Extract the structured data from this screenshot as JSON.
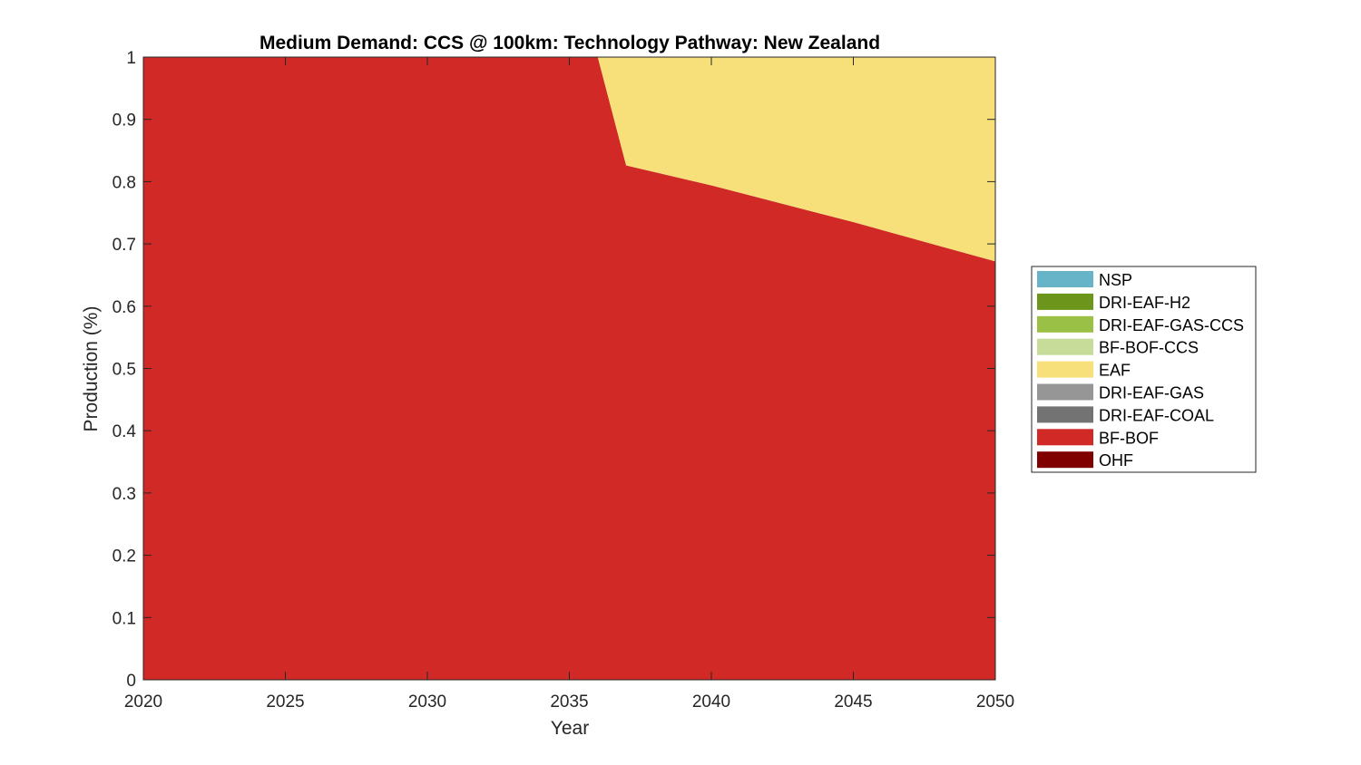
{
  "chart_data": {
    "type": "area",
    "title": "Medium Demand: CCS @ 100km: Technology Pathway: New Zealand",
    "xlabel": "Year",
    "ylabel": "Production (%)",
    "xlim": [
      2020,
      2050
    ],
    "ylim": [
      0,
      1
    ],
    "xticks": [
      "2020",
      "2025",
      "2030",
      "2035",
      "2040",
      "2045",
      "2050"
    ],
    "yticks": [
      "0",
      "0.1",
      "0.2",
      "0.3",
      "0.4",
      "0.5",
      "0.6",
      "0.7",
      "0.8",
      "0.9",
      "1"
    ],
    "grid": false,
    "stacked": true,
    "legend_position": "right",
    "x": [
      2020,
      2036,
      2037,
      2040,
      2045,
      2050
    ],
    "series": [
      {
        "name": "OHF",
        "color": "#800000",
        "values": [
          0,
          0,
          0,
          0,
          0,
          0
        ]
      },
      {
        "name": "BF-BOF",
        "color": "#D12A26",
        "values": [
          1,
          1,
          0.826,
          0.794,
          0.735,
          0.672
        ]
      },
      {
        "name": "DRI-EAF-COAL",
        "color": "#737373",
        "values": [
          0,
          0,
          0,
          0,
          0,
          0
        ]
      },
      {
        "name": "DRI-EAF-GAS",
        "color": "#969696",
        "values": [
          0,
          0,
          0,
          0,
          0,
          0
        ]
      },
      {
        "name": "EAF",
        "color": "#F7E07A",
        "values": [
          0,
          0,
          0.174,
          0.206,
          0.265,
          0.328
        ]
      },
      {
        "name": "BF-BOF-CCS",
        "color": "#C7DC99",
        "values": [
          0,
          0,
          0,
          0,
          0,
          0
        ]
      },
      {
        "name": "DRI-EAF-GAS-CCS",
        "color": "#9AC046",
        "values": [
          0,
          0,
          0,
          0,
          0,
          0
        ]
      },
      {
        "name": "DRI-EAF-H2",
        "color": "#6B961B",
        "values": [
          0,
          0,
          0,
          0,
          0,
          0
        ]
      },
      {
        "name": "NSP",
        "color": "#67B3C7",
        "values": [
          0,
          0,
          0,
          0,
          0,
          0
        ]
      }
    ],
    "legend_order": [
      "NSP",
      "DRI-EAF-H2",
      "DRI-EAF-GAS-CCS",
      "BF-BOF-CCS",
      "EAF",
      "DRI-EAF-GAS",
      "DRI-EAF-COAL",
      "BF-BOF",
      "OHF"
    ]
  }
}
